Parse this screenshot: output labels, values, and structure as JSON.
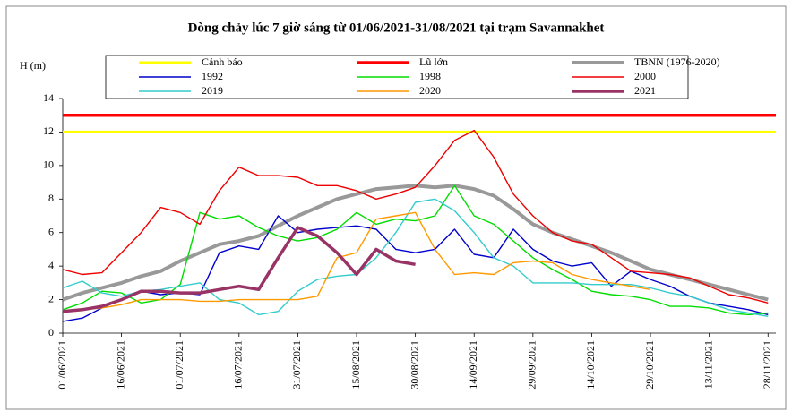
{
  "chart_data": {
    "type": "line",
    "title": "Dòng chảy lúc 7 giờ sáng từ 01/06/2021-31/08/2021 tại trạm Savannakhet",
    "y_label": "H (m)",
    "xlim": [
      "01/06/2021",
      "30/11/2021"
    ],
    "xticks": [
      "01/06/2021",
      "16/06/2021",
      "01/07/2021",
      "16/07/2021",
      "31/07/2021",
      "15/08/2021",
      "30/08/2021",
      "14/09/2021",
      "29/09/2021",
      "14/10/2021",
      "29/10/2021",
      "13/11/2021",
      "28/11/2021"
    ],
    "ylim": [
      0,
      14
    ],
    "yticks": [
      0,
      2,
      4,
      6,
      8,
      10,
      12,
      14
    ],
    "x": [
      "01/06/2021",
      "06/06/2021",
      "11/06/2021",
      "16/06/2021",
      "21/06/2021",
      "26/06/2021",
      "01/07/2021",
      "06/07/2021",
      "11/07/2021",
      "16/07/2021",
      "21/07/2021",
      "26/07/2021",
      "31/07/2021",
      "05/08/2021",
      "10/08/2021",
      "15/08/2021",
      "20/08/2021",
      "25/08/2021",
      "30/08/2021",
      "04/09/2021",
      "09/09/2021",
      "14/09/2021",
      "19/09/2021",
      "24/09/2021",
      "29/09/2021",
      "04/10/2021",
      "09/10/2021",
      "14/10/2021",
      "19/10/2021",
      "24/10/2021",
      "29/10/2021",
      "03/11/2021",
      "08/11/2021",
      "13/11/2021",
      "18/11/2021",
      "23/11/2021",
      "28/11/2021"
    ],
    "series": [
      {
        "name": "Cảnh báo",
        "color": "#ffff00",
        "width": 3,
        "x": [
          "01/06/2021",
          "30/11/2021"
        ],
        "values": [
          12,
          12
        ]
      },
      {
        "name": "Lũ lớn",
        "color": "#ff0000",
        "width": 3.5,
        "x": [
          "01/06/2021",
          "30/11/2021"
        ],
        "values": [
          13,
          13
        ]
      },
      {
        "name": "TBNN (1976-2020)",
        "color": "#999999",
        "width": 4,
        "values": [
          2.0,
          2.4,
          2.7,
          3.0,
          3.4,
          3.7,
          4.3,
          4.8,
          5.3,
          5.5,
          5.8,
          6.4,
          7.0,
          7.5,
          8.0,
          8.3,
          8.6,
          8.7,
          8.8,
          8.7,
          8.8,
          8.6,
          8.2,
          7.4,
          6.5,
          6.0,
          5.6,
          5.2,
          4.8,
          4.3,
          3.8,
          3.5,
          3.2,
          2.9,
          2.6,
          2.3,
          2.0
        ]
      },
      {
        "name": "1992",
        "color": "#0000cc",
        "width": 1.4,
        "values": [
          0.7,
          0.9,
          1.5,
          2.0,
          2.5,
          2.3,
          2.4,
          2.3,
          4.8,
          5.2,
          5.0,
          7.0,
          6.0,
          6.2,
          6.3,
          6.4,
          6.2,
          5.0,
          4.8,
          5.0,
          6.2,
          4.7,
          4.5,
          6.2,
          5.0,
          4.3,
          4.0,
          4.2,
          2.8,
          3.7,
          3.2,
          2.8,
          2.2,
          1.8,
          1.6,
          1.4,
          1.1
        ]
      },
      {
        "name": "1998",
        "color": "#00dd00",
        "width": 1.4,
        "values": [
          1.4,
          1.8,
          2.5,
          2.4,
          1.8,
          2.0,
          2.9,
          7.2,
          6.8,
          7.0,
          6.3,
          5.8,
          5.5,
          5.7,
          6.2,
          7.2,
          6.5,
          6.8,
          6.7,
          7.0,
          8.8,
          7.0,
          6.5,
          5.5,
          4.5,
          3.8,
          3.2,
          2.5,
          2.3,
          2.2,
          2.0,
          1.6,
          1.6,
          1.5,
          1.2,
          1.1,
          1.2
        ]
      },
      {
        "name": "2000",
        "color": "#ee0000",
        "width": 1.4,
        "values": [
          3.8,
          3.5,
          3.6,
          4.8,
          6.0,
          7.5,
          7.2,
          6.5,
          8.5,
          9.9,
          9.4,
          9.4,
          9.3,
          8.8,
          8.8,
          8.5,
          8.0,
          8.3,
          8.7,
          10.0,
          11.5,
          12.1,
          10.5,
          8.3,
          7.0,
          6.0,
          5.5,
          5.3,
          4.5,
          3.7,
          3.6,
          3.5,
          3.3,
          2.8,
          2.3,
          2.1,
          1.8
        ]
      },
      {
        "name": "2019",
        "color": "#33cccc",
        "width": 1.4,
        "values": [
          2.7,
          3.1,
          2.4,
          2.2,
          2.5,
          2.6,
          2.8,
          3.0,
          2.0,
          1.8,
          1.1,
          1.3,
          2.5,
          3.2,
          3.4,
          3.5,
          4.5,
          6.0,
          7.8,
          8.0,
          7.3,
          6.0,
          4.5,
          4.0,
          3.0,
          3.0,
          3.0,
          2.9,
          2.9,
          2.9,
          2.7,
          2.4,
          2.2,
          1.8,
          1.4,
          1.2,
          1.0
        ]
      },
      {
        "name": "2020",
        "color": "#ff9900",
        "width": 1.4,
        "values": [
          1.3,
          1.4,
          1.5,
          1.7,
          2.0,
          2.0,
          2.0,
          1.9,
          1.9,
          2.0,
          2.0,
          2.0,
          2.0,
          2.2,
          4.5,
          4.8,
          6.8,
          7.0,
          7.2,
          5.0,
          3.5,
          3.6,
          3.5,
          4.2,
          4.3,
          4.2,
          3.5,
          3.2,
          3.0,
          2.8,
          2.6,
          null,
          null,
          null,
          null,
          null,
          null
        ]
      },
      {
        "name": "2021",
        "color": "#993366",
        "width": 3.5,
        "values": [
          1.3,
          1.4,
          1.6,
          2.0,
          2.5,
          2.5,
          2.4,
          2.4,
          2.6,
          2.8,
          2.6,
          4.5,
          6.3,
          5.8,
          4.8,
          3.5,
          5.0,
          4.3,
          4.1,
          null,
          null,
          null,
          null,
          null,
          null,
          null,
          null,
          null,
          null,
          null,
          null,
          null,
          null,
          null,
          null,
          null,
          null
        ]
      }
    ]
  }
}
